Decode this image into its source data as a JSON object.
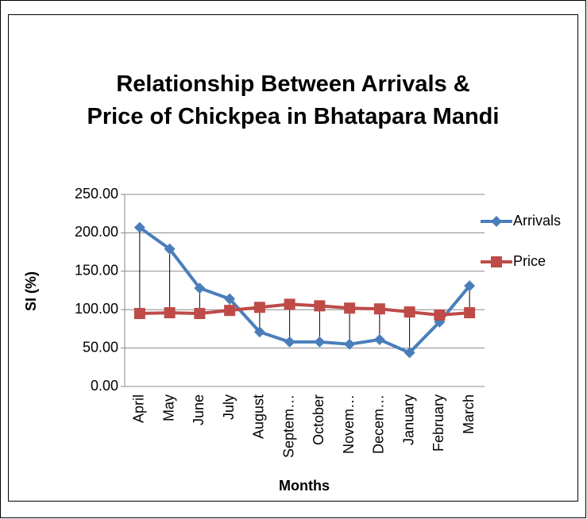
{
  "chart_data": {
    "type": "line",
    "title": "Relationship Between Arrivals & Price of Chickpea in Bhatapara Mandi",
    "x_label": "Months",
    "y_label": "SI (%)",
    "categories": [
      "April",
      "May",
      "June",
      "July",
      "August",
      "Septem…",
      "October",
      "Novem…",
      "Decem…",
      "January",
      "February",
      "March"
    ],
    "series": [
      {
        "name": "Arrivals",
        "color": "#4a7ebb",
        "marker": "diamond",
        "values": [
          207,
          179,
          128,
          114,
          71,
          58,
          58,
          55,
          61,
          44,
          84,
          131
        ]
      },
      {
        "name": "Price",
        "color": "#be4b48",
        "marker": "square",
        "values": [
          95,
          96,
          95,
          99,
          103,
          107,
          105,
          102,
          101,
          97,
          93,
          96
        ]
      }
    ],
    "high_low_lines": true,
    "ylim": [
      0,
      250
    ],
    "yticks": [
      {
        "value": 0,
        "label": "0.00"
      },
      {
        "value": 50,
        "label": "50.00"
      },
      {
        "value": 100,
        "label": "100.00"
      },
      {
        "value": 150,
        "label": "150.00"
      },
      {
        "value": 200,
        "label": "200.00"
      },
      {
        "value": 250,
        "label": "250.00"
      }
    ],
    "grid": true,
    "legend": "right"
  }
}
